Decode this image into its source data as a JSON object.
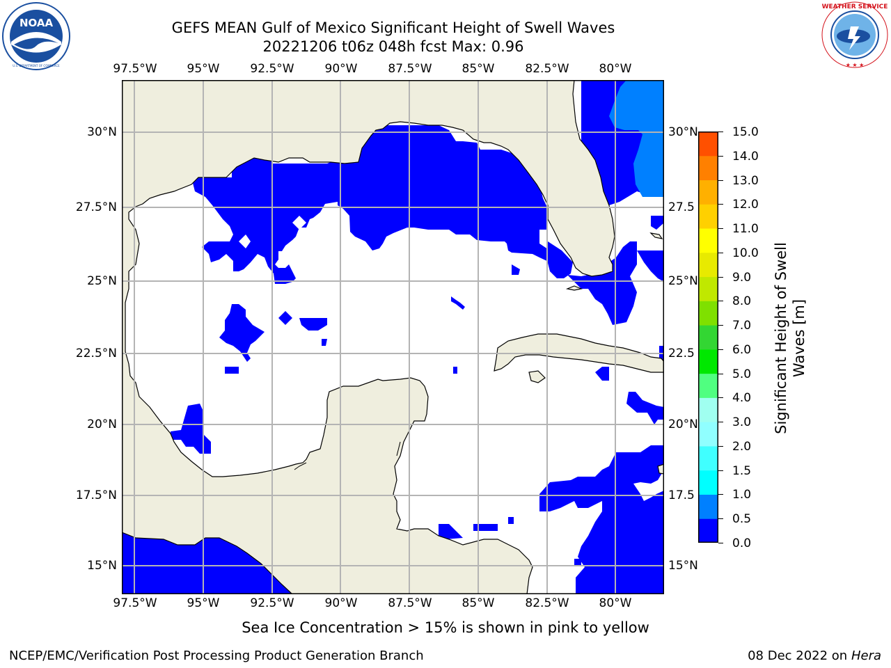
{
  "header": {
    "title_line1": "GEFS MEAN Gulf of Mexico Significant Height of Swell Waves",
    "title_line2": "20221206 t06z 048h fcst   Max: 0.96"
  },
  "logos": {
    "left": {
      "name": "NOAA",
      "ring_text": "NATIONAL OCEANIC AND ATMOSPHERIC ADMINISTRATION · U.S. DEPARTMENT OF COMMERCE",
      "color": "#1a4fa0"
    },
    "right": {
      "ring_text": "NATIONAL WEATHER SERVICE",
      "color": "#d4121b"
    }
  },
  "map": {
    "lon_ticks_top": [
      "97.5°W",
      "95°W",
      "92.5°W",
      "90°W",
      "87.5°W",
      "85°W",
      "82.5°W",
      "80°W"
    ],
    "lon_ticks_bottom": [
      "97.5°W",
      "95°W",
      "92.5°W",
      "90°W",
      "87.5°W",
      "85°W",
      "82.5°W",
      "80°W"
    ],
    "lat_ticks_left": [
      "30°N",
      "27.5°N",
      "25°N",
      "22.5°N",
      "20°N",
      "17.5°N",
      "15°N"
    ],
    "lat_ticks_right": [
      "30°N",
      "27.5",
      "25°N",
      "22.5",
      "20°N",
      "17.5",
      "15°N"
    ],
    "colors": {
      "land": "#efeede",
      "ocean_low": "#0000ff",
      "ocean_mid": "#0080ff",
      "no_data": "#ffffff",
      "grid": "#b4b4b4",
      "coast": "#000000"
    }
  },
  "colorbar": {
    "label": "Significant Height of Swell Waves [m]",
    "label_line1": "Significant Height of Swell",
    "label_line2": "Waves [m]",
    "ticks": [
      "15.0",
      "14.0",
      "13.0",
      "12.0",
      "11.0",
      "10.0",
      "9.0",
      "8.0",
      "7.0",
      "6.0",
      "5.0",
      "4.0",
      "3.0",
      "2.0",
      "1.5",
      "1.0",
      "0.5",
      "0.0"
    ],
    "colors_bottom_to_top": [
      "#0000ff",
      "#0080ff",
      "#00ffff",
      "#40ffff",
      "#90ffff",
      "#a0fff0",
      "#50ff80",
      "#00e800",
      "#33d633",
      "#7fe000",
      "#c0e800",
      "#e8ea00",
      "#ffff00",
      "#ffd000",
      "#ffb000",
      "#ff8000",
      "#ff5000",
      "#ff2000",
      "#ff0000"
    ]
  },
  "notes": {
    "sea_ice": "Sea Ice Concentration > 15% is shown in pink to yellow"
  },
  "footer": {
    "left": "NCEP/EMC/Verification Post Processing Product Generation Branch",
    "right_date": "08 Dec 2022 on",
    "right_machine": "Hera"
  }
}
